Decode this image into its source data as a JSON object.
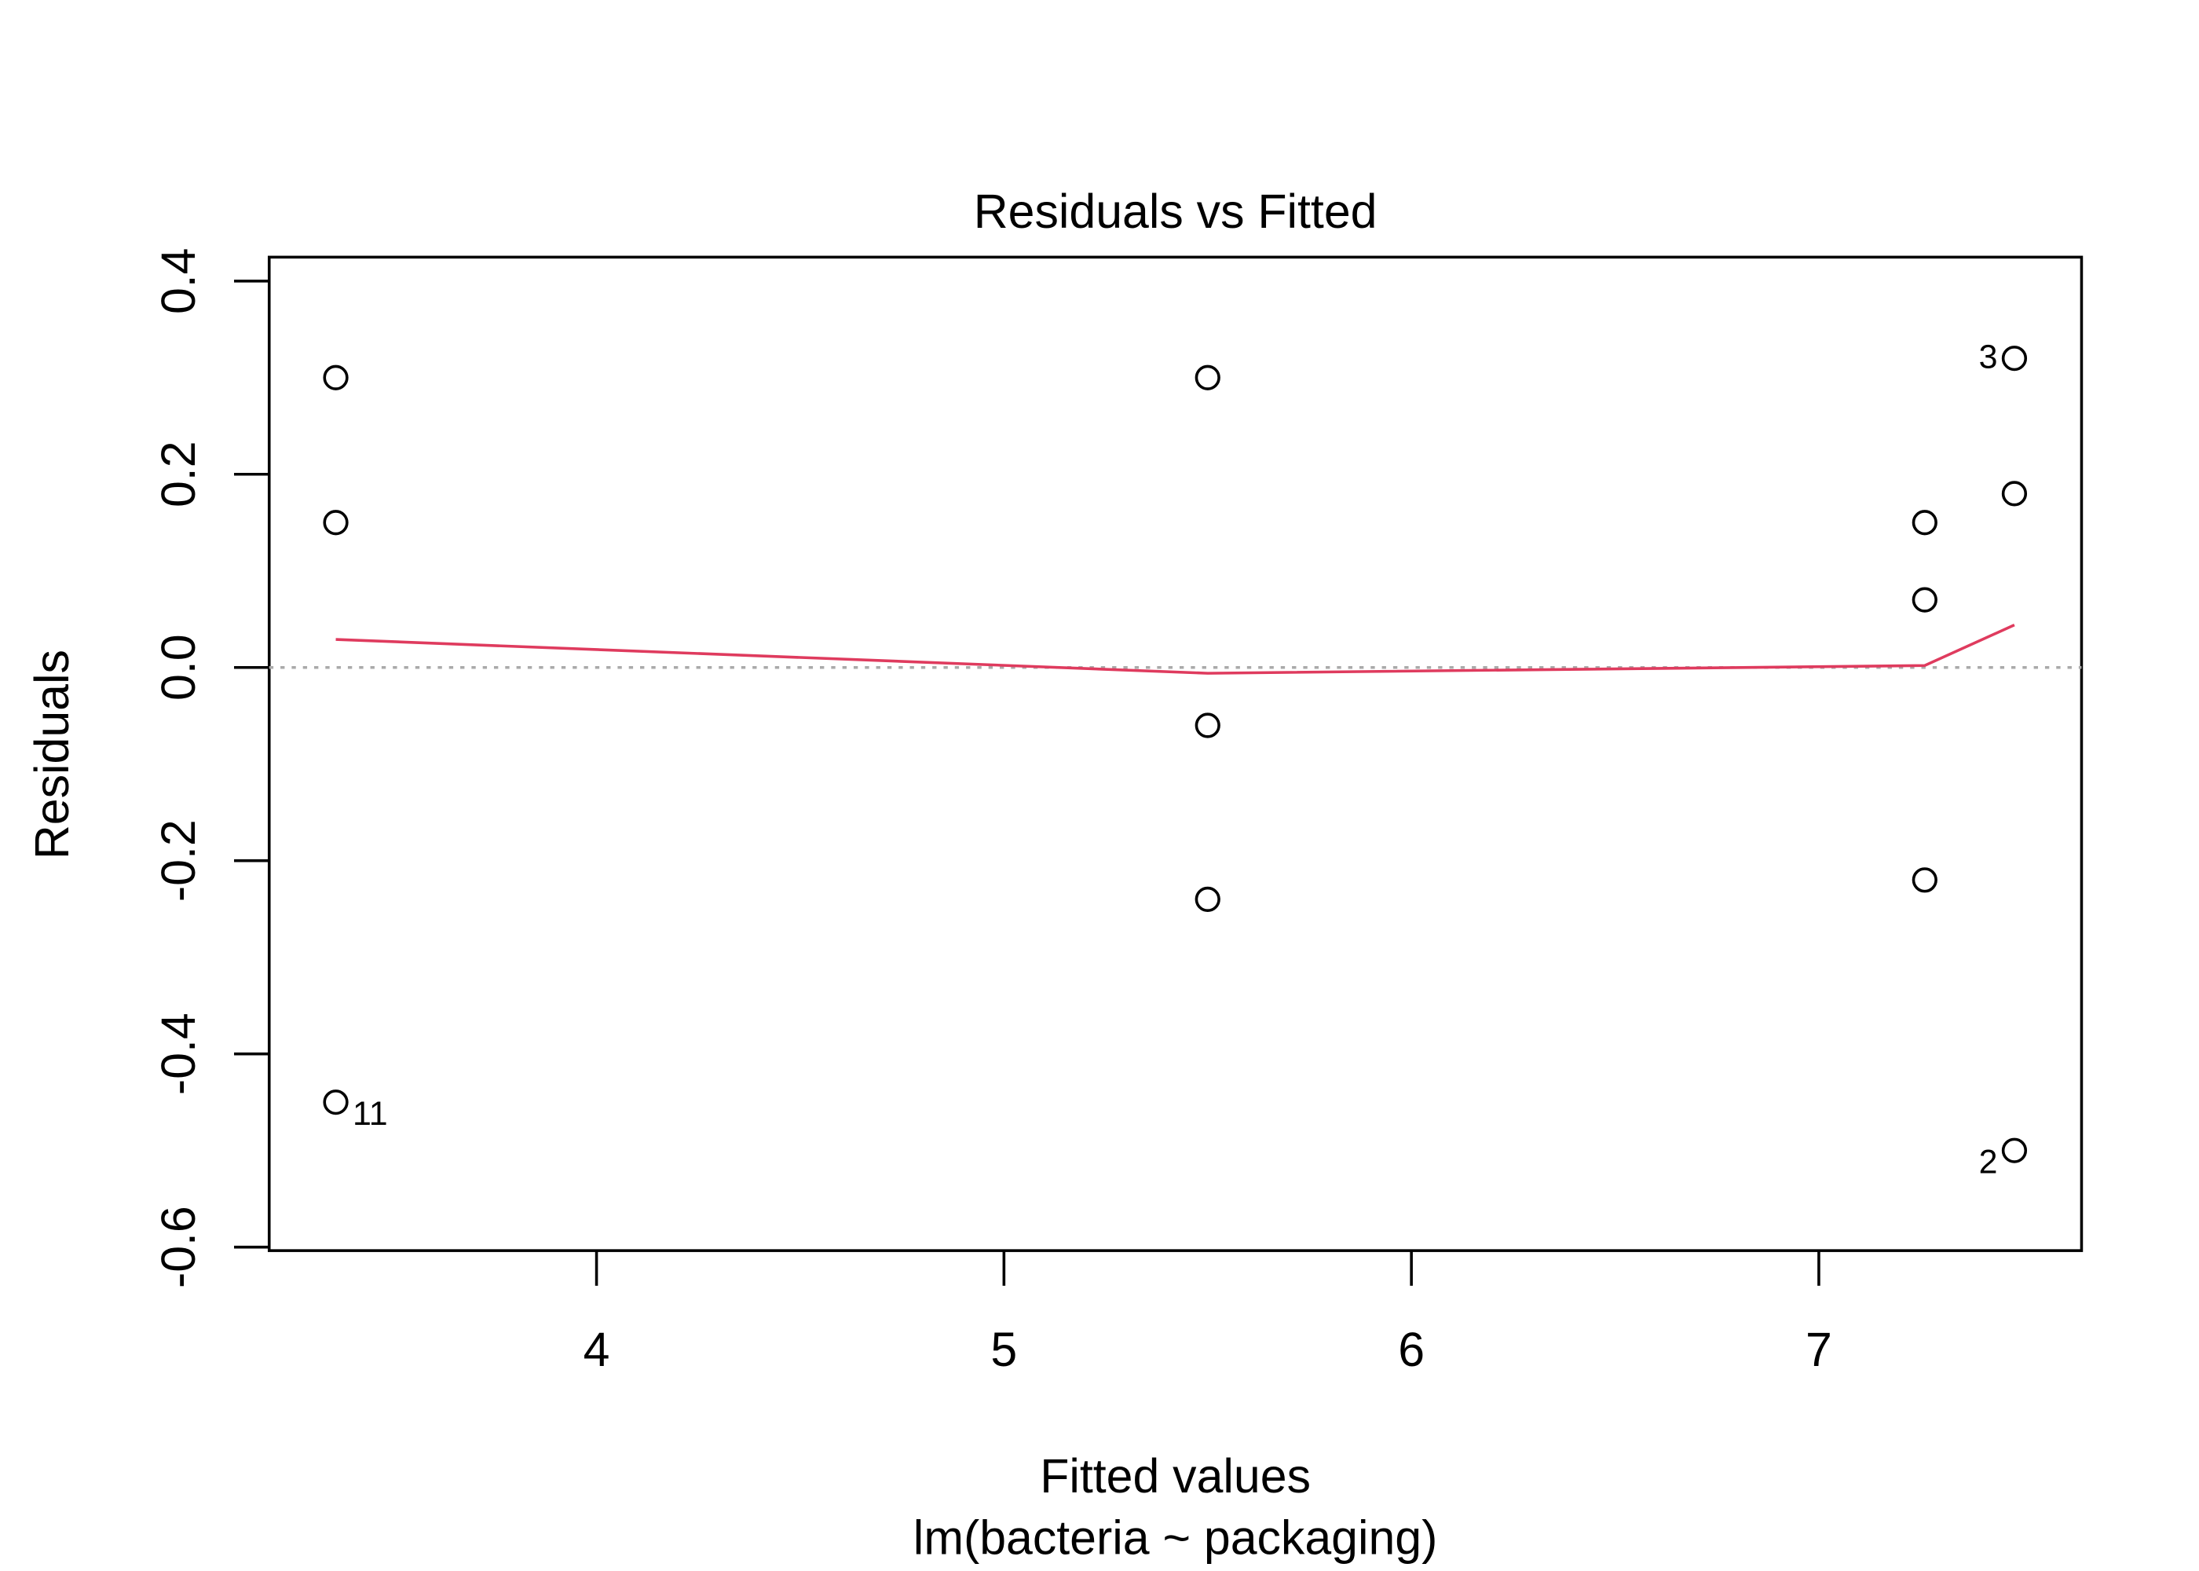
{
  "chart_data": {
    "type": "scatter",
    "title": "Residuals vs Fitted",
    "xlabel": "Fitted values",
    "subtitle": "lm(bacteria ~ packaging)",
    "ylabel": "Residuals",
    "xlim": [
      3.2,
      7.65
    ],
    "ylim": [
      -0.6,
      0.42
    ],
    "x_ticks": [
      4,
      5,
      6,
      7
    ],
    "x_tick_labels": [
      "4",
      "5",
      "6",
      "7"
    ],
    "y_ticks": [
      -0.6,
      -0.4,
      -0.2,
      0.0,
      0.2,
      0.4
    ],
    "y_tick_labels": [
      "-0.6",
      "-0.4",
      "-0.2",
      "0.0",
      "0.2",
      "0.4"
    ],
    "grid": false,
    "reference_line": {
      "y": 0,
      "style": "dotted",
      "color": "#aaaaaa"
    },
    "points": [
      {
        "x": 3.36,
        "y": 0.3
      },
      {
        "x": 3.36,
        "y": 0.15
      },
      {
        "x": 3.36,
        "y": -0.45,
        "label": "11",
        "label_side": "right"
      },
      {
        "x": 5.5,
        "y": 0.3
      },
      {
        "x": 5.5,
        "y": -0.06
      },
      {
        "x": 5.5,
        "y": -0.24
      },
      {
        "x": 7.26,
        "y": 0.15
      },
      {
        "x": 7.26,
        "y": 0.07
      },
      {
        "x": 7.26,
        "y": -0.22
      },
      {
        "x": 7.48,
        "y": 0.32,
        "label": "3",
        "label_side": "left"
      },
      {
        "x": 7.48,
        "y": 0.18
      },
      {
        "x": 7.48,
        "y": -0.5,
        "label": "2",
        "label_side": "left"
      }
    ],
    "smooth_line": {
      "color": "#df3b5e",
      "x": [
        3.36,
        5.5,
        7.26,
        7.48
      ],
      "y": [
        0.029,
        -0.006,
        0.002,
        0.044
      ]
    },
    "point_color": "#000000"
  }
}
